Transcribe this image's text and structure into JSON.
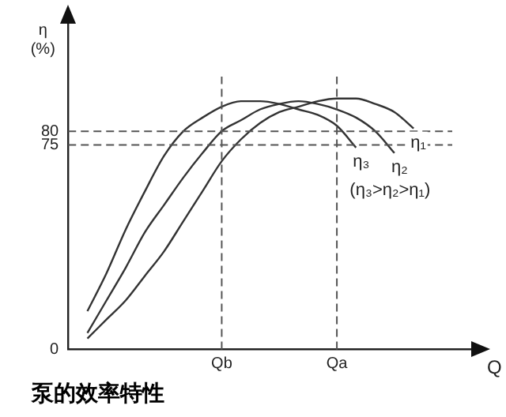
{
  "chart_data": {
    "type": "line",
    "title": "泵的效率特性",
    "xlabel": "Q",
    "ylabel": "η (%)",
    "categories": [
      null,
      null,
      null,
      null,
      null,
      null,
      null,
      null,
      "Qb",
      null,
      null,
      null,
      null,
      null,
      "Qa",
      null,
      null,
      null,
      null,
      null,
      null,
      null
    ],
    "ylim": [
      0,
      120
    ],
    "yticks": [
      0,
      75,
      80
    ],
    "series": [
      {
        "name": "η₃",
        "color": "#333333",
        "values": [
          null,
          14,
          28,
          44,
          58,
          71,
          80,
          85,
          89,
          91,
          91,
          90,
          88,
          86,
          82,
          74,
          null,
          null,
          null,
          null,
          null,
          null
        ]
      },
      {
        "name": "η₂",
        "color": "#333333",
        "values": [
          null,
          6,
          18,
          30,
          43,
          53,
          63,
          72,
          80,
          84,
          88,
          90,
          91,
          90,
          88,
          85,
          80,
          72,
          null,
          null,
          null,
          null
        ]
      },
      {
        "name": "η₁",
        "color": "#333333",
        "values": [
          null,
          4,
          11,
          18,
          27,
          36,
          47,
          58,
          69,
          77,
          83,
          87,
          89,
          91,
          92,
          92,
          90,
          87,
          81,
          null,
          null,
          null
        ]
      }
    ],
    "ref_lines": [
      {
        "axis": "y",
        "value": 80,
        "color": "#555555",
        "line_style": "dashed"
      },
      {
        "axis": "y",
        "value": 75,
        "color": "#555555",
        "line_style": "dashed"
      },
      {
        "axis": "x",
        "value": "Qb",
        "color": "#555555",
        "line_style": "dashed"
      },
      {
        "axis": "x",
        "value": "Qa",
        "color": "#555555",
        "line_style": "dashed"
      }
    ],
    "annotations": [
      "(η₃>η₂>η₁)"
    ],
    "grid": false,
    "legend": false,
    "marker": "none",
    "line_style": "solid"
  }
}
